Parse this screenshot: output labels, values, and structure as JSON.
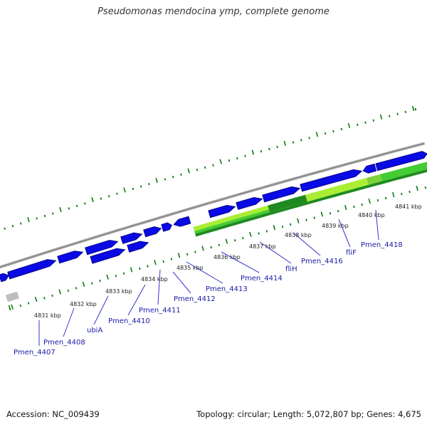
{
  "title": "Pseudomonas mendocina ymp, complete genome",
  "accession": "Accession: NC_009439",
  "summary": "Topology: circular; Length: 5,072,807 bp; Genes: 4,675",
  "colors": {
    "cds": "#0a0ae6",
    "cds_light": "#4a5cff",
    "backbone": "#8a8a8a",
    "tick": "#0e7a0e",
    "lime": "#aaee33",
    "green": "#44cc33",
    "dark_green": "#1f8a1f",
    "label": "#1a1aa6",
    "leader": "#3333cc",
    "grey_feature": "#bdbdbd"
  },
  "kbp_ticks": [
    "4831 kbp",
    "4832 kbp",
    "4833 kbp",
    "4834 kbp",
    "4835 kbp",
    "4836 kbp",
    "4837 kbp",
    "4838 kbp",
    "4839 kbp",
    "4840 kbp",
    "4841 kbp"
  ],
  "genes": [
    "Pmen_4407",
    "Pmen_4408",
    "ubiA",
    "Pmen_4410",
    "Pmen_4411",
    "Pmen_4412",
    "Pmen_4413",
    "Pmen_4414",
    "fliH",
    "Pmen_4416",
    "fliF",
    "Pmen_4418"
  ]
}
